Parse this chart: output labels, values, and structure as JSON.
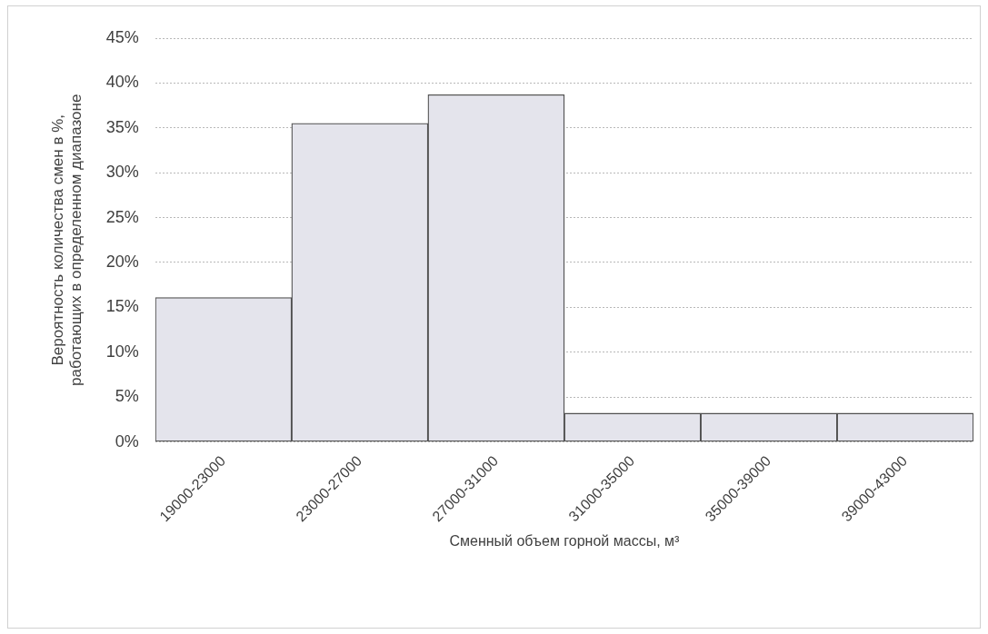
{
  "chart_data": {
    "type": "bar",
    "xlabel": "Сменный объем горной массы, м³",
    "ylabel": "Вероятность количества смен в %,\nработающих в определенном диапазоне",
    "categories": [
      "19000-23000",
      "23000-27000",
      "27000-31000",
      "31000-35000",
      "35000-39000",
      "39000-43000"
    ],
    "values": [
      16.1,
      35.5,
      38.7,
      3.2,
      3.2,
      3.2
    ],
    "color": "#e4e4ec",
    "ylim": [
      0,
      45
    ],
    "yticks": [
      {
        "value": 0,
        "label": "0%"
      },
      {
        "value": 5,
        "label": "5%"
      },
      {
        "value": 10,
        "label": "10%"
      },
      {
        "value": 15,
        "label": "15%"
      },
      {
        "value": 20,
        "label": "20%"
      },
      {
        "value": 25,
        "label": "25%"
      },
      {
        "value": 30,
        "label": "30%"
      },
      {
        "value": 35,
        "label": "35%"
      },
      {
        "value": 40,
        "label": "40%"
      },
      {
        "value": 45,
        "label": "45%"
      }
    ],
    "grid": "y"
  }
}
